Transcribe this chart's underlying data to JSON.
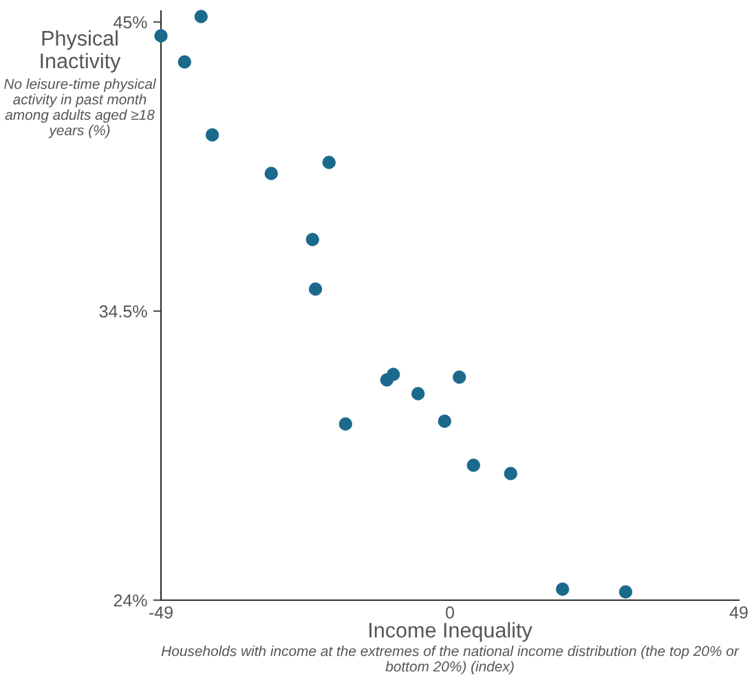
{
  "chart_data": {
    "type": "scatter",
    "xlabel": "Income Inequality",
    "ylabel": "Physical Inactivity",
    "annotations": [
      "No leisure-time physical activity in past month among adults aged ≥18 years (%)",
      "Households with income at the extremes of the national income distribution (the top 20% or bottom 20%) (index)"
    ],
    "series": [
      {
        "color": "#1b6a8c",
        "x": [
          -49,
          -42.2,
          -45,
          -40.3,
          -30.3,
          -20.5,
          -23.3,
          -22.8,
          -10.7,
          -9.6,
          -17.7,
          -5.4,
          1.6,
          -0.9,
          4.0,
          10.3,
          19.1,
          29.8
        ],
        "values": [
          44.5,
          45.2,
          43.55,
          40.9,
          39.5,
          39.9,
          37.1,
          35.3,
          32.0,
          32.2,
          30.4,
          31.5,
          32.1,
          30.5,
          28.9,
          28.6,
          24.4,
          24.3
        ]
      }
    ],
    "xlim": [
      -49,
      49
    ],
    "ylim": [
      24,
      45.4
    ],
    "xticks": [
      -49,
      0,
      49
    ],
    "yticks": [
      {
        "value": 24,
        "label": "24%"
      },
      {
        "value": 34.5,
        "label": "34.5%"
      },
      {
        "value": 45,
        "label": "45%"
      }
    ],
    "marker": "circle",
    "grid": false,
    "legend": false
  }
}
